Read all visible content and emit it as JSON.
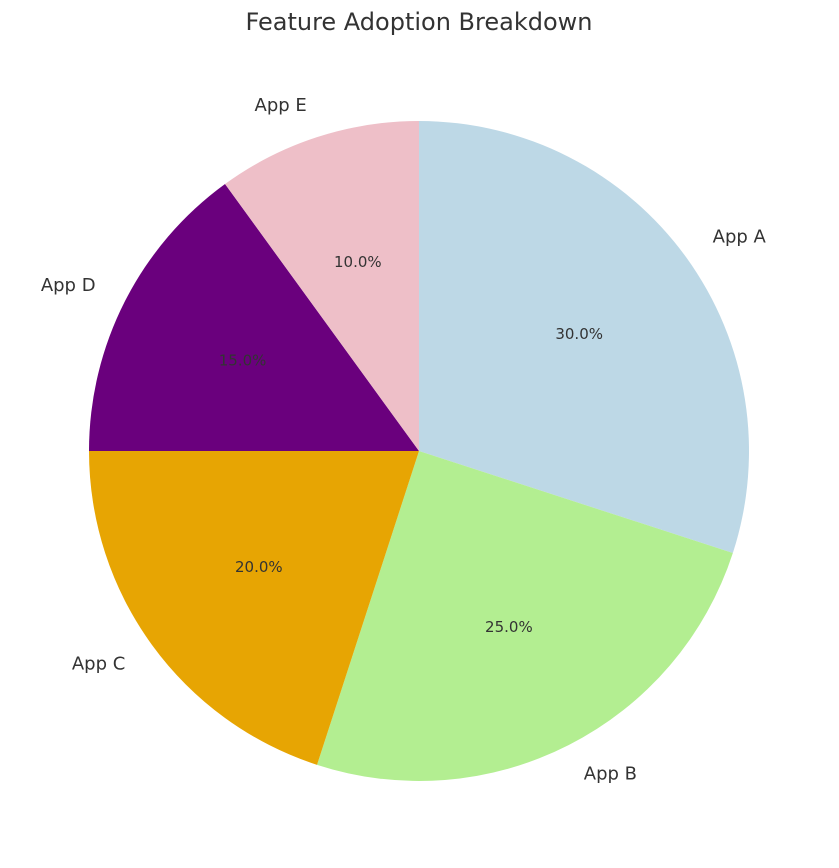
{
  "chart_data": {
    "type": "pie",
    "title": "Feature Adoption Breakdown",
    "start_angle_deg": 90,
    "direction": "clockwise",
    "slices": [
      {
        "label": "App A",
        "value": 30.0,
        "pct_label": "30.0%",
        "color": "#BDD8E6"
      },
      {
        "label": "App B",
        "value": 25.0,
        "pct_label": "25.0%",
        "color": "#B3EE91"
      },
      {
        "label": "App C",
        "value": 20.0,
        "pct_label": "20.0%",
        "color": "#E7A503"
      },
      {
        "label": "App D",
        "value": 15.0,
        "pct_label": "15.0%",
        "color": "#6A007D"
      },
      {
        "label": "App E",
        "value": 10.0,
        "pct_label": "10.0%",
        "color": "#EEBFC8"
      }
    ]
  }
}
